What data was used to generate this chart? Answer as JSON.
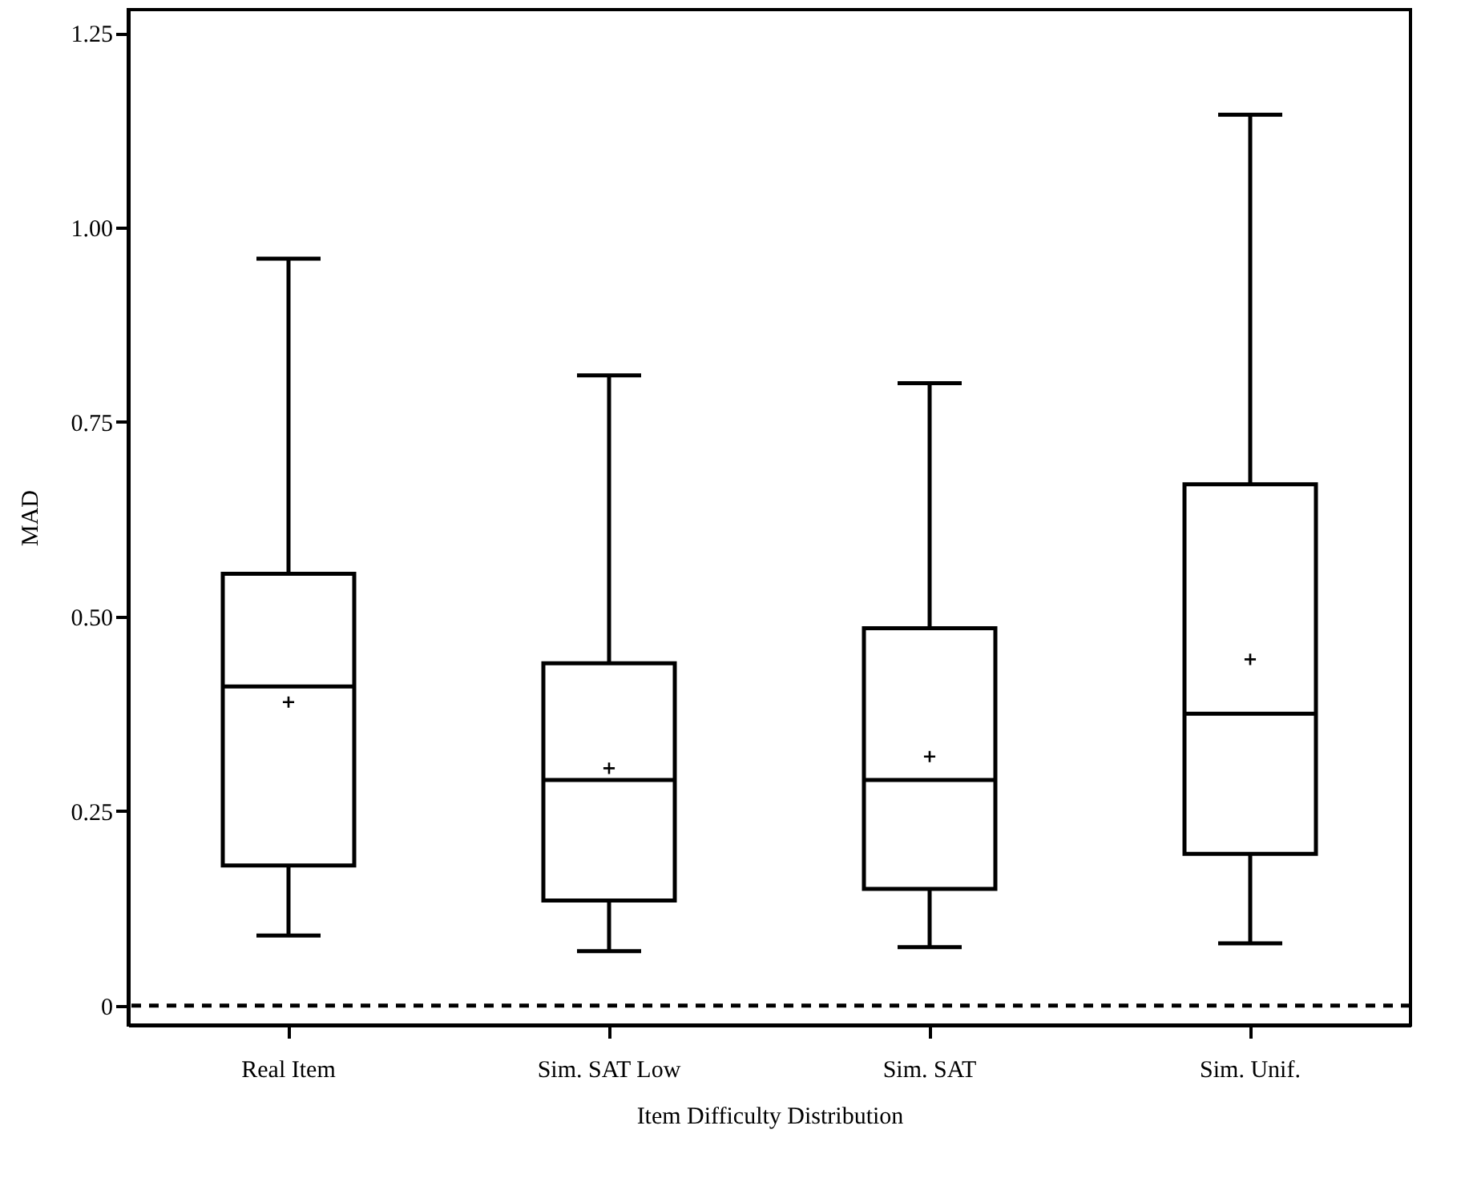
{
  "chart_data": {
    "type": "box",
    "xlabel": "Item Difficulty Distribution",
    "ylabel": "MAD",
    "categories": [
      "Real Item",
      "Sim. SAT Low",
      "Sim. SAT",
      "Sim. Unif."
    ],
    "boxes": [
      {
        "low": 0.09,
        "q1": 0.18,
        "median": 0.41,
        "q3": 0.555,
        "high": 0.96,
        "mean": 0.39
      },
      {
        "low": 0.07,
        "q1": 0.135,
        "median": 0.29,
        "q3": 0.44,
        "high": 0.81,
        "mean": 0.305
      },
      {
        "low": 0.075,
        "q1": 0.15,
        "median": 0.29,
        "q3": 0.485,
        "high": 0.8,
        "mean": 0.32
      },
      {
        "low": 0.08,
        "q1": 0.195,
        "median": 0.375,
        "q3": 0.67,
        "high": 1.145,
        "mean": 0.445
      }
    ],
    "ylim": [
      -0.025,
      1.28
    ],
    "yticks": [
      0,
      {
        "value": 0.25,
        "label": "0.25"
      },
      {
        "value": 0.5,
        "label": "0.50"
      },
      {
        "value": 0.75,
        "label": "0.75"
      },
      {
        "value": 1,
        "label": "1.00"
      },
      {
        "value": 1.25,
        "label": "1.25"
      }
    ],
    "ref_lines": [
      {
        "axis": "y",
        "value": 0,
        "line_style": "dashed"
      }
    ],
    "grid": false
  }
}
